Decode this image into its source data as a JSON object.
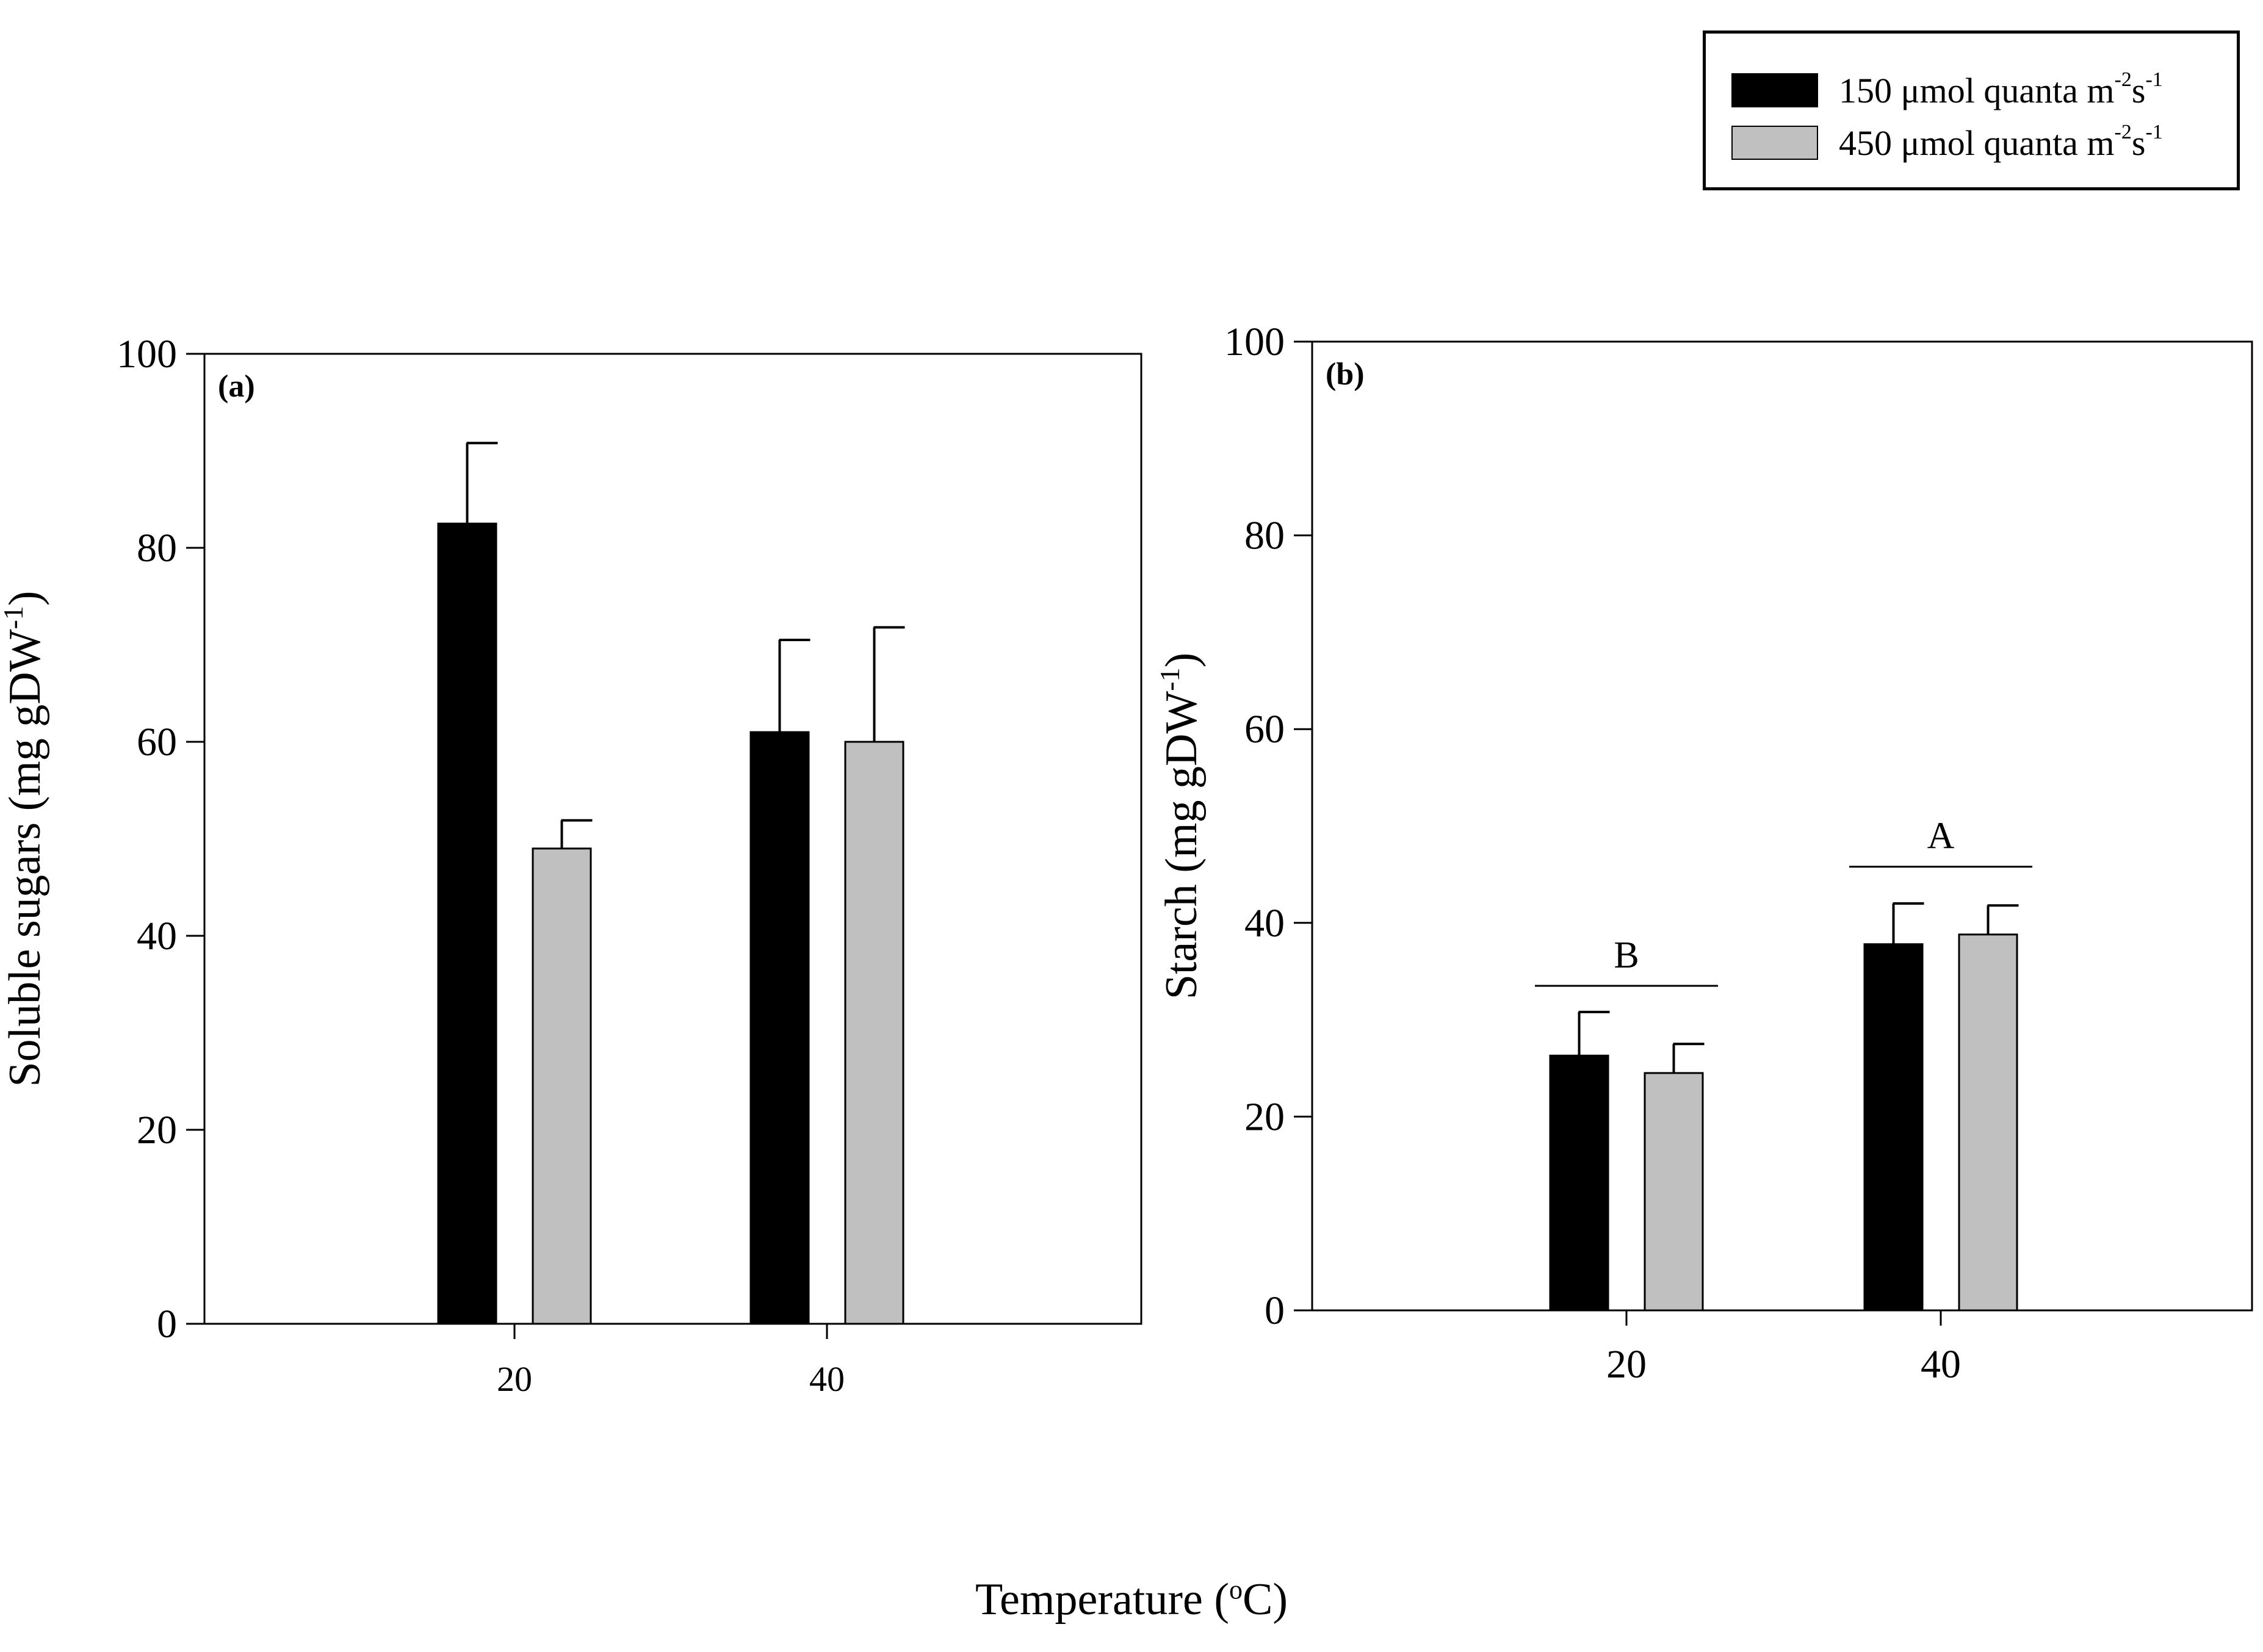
{
  "legend": {
    "entries": [
      {
        "value": "150",
        "unit": "μmol quanta m",
        "exp1": "-2",
        "mid": "s",
        "exp2": "-1",
        "color": "#000000"
      },
      {
        "value": "450",
        "unit": "μmol quanta m",
        "exp1": "-2",
        "mid": "s",
        "exp2": "-1",
        "color": "#c0c0c0"
      }
    ]
  },
  "x_title": {
    "text": "Temperature (",
    "sup": "o",
    "after": "C)"
  },
  "chart_data": [
    {
      "type": "bar",
      "panel_label": "(a)",
      "ylabel": "Soluble sugars (mg gDW",
      "ylabel_sup": "-1",
      "ylabel_close": ")",
      "categories": [
        "20",
        "40"
      ],
      "ylim": [
        0,
        100
      ],
      "yticks": [
        "0",
        "20",
        "40",
        "60",
        "80",
        "100"
      ],
      "series": [
        {
          "name": "150 μmol quanta m-2s-1",
          "color": "#000000",
          "values": [
            82.5,
            61
          ],
          "errors": [
            8.3,
            9.5
          ]
        },
        {
          "name": "450 μmol quanta m-2s-1",
          "color": "#c0c0c0",
          "values": [
            49,
            60
          ],
          "errors": [
            2.9,
            11.8
          ]
        }
      ],
      "annotations": []
    },
    {
      "type": "bar",
      "panel_label": "(b)",
      "ylabel": "Starch (mg gDW",
      "ylabel_sup": "-1",
      "ylabel_close": ")",
      "categories": [
        "20",
        "40"
      ],
      "ylim": [
        0,
        100
      ],
      "yticks": [
        "0",
        "20",
        "40",
        "60",
        "80",
        "100"
      ],
      "series": [
        {
          "name": "150 μmol quanta m-2s-1",
          "color": "#000000",
          "values": [
            26.3,
            37.8
          ],
          "errors": [
            4.5,
            4.2
          ]
        },
        {
          "name": "450 μmol quanta m-2s-1",
          "color": "#c0c0c0",
          "values": [
            24.5,
            38.8
          ],
          "errors": [
            3.0,
            3.0
          ]
        }
      ],
      "annotations": [
        {
          "category": "20",
          "label": "B",
          "y": 33.5
        },
        {
          "category": "40",
          "label": "A",
          "y": 45.8
        }
      ]
    }
  ]
}
